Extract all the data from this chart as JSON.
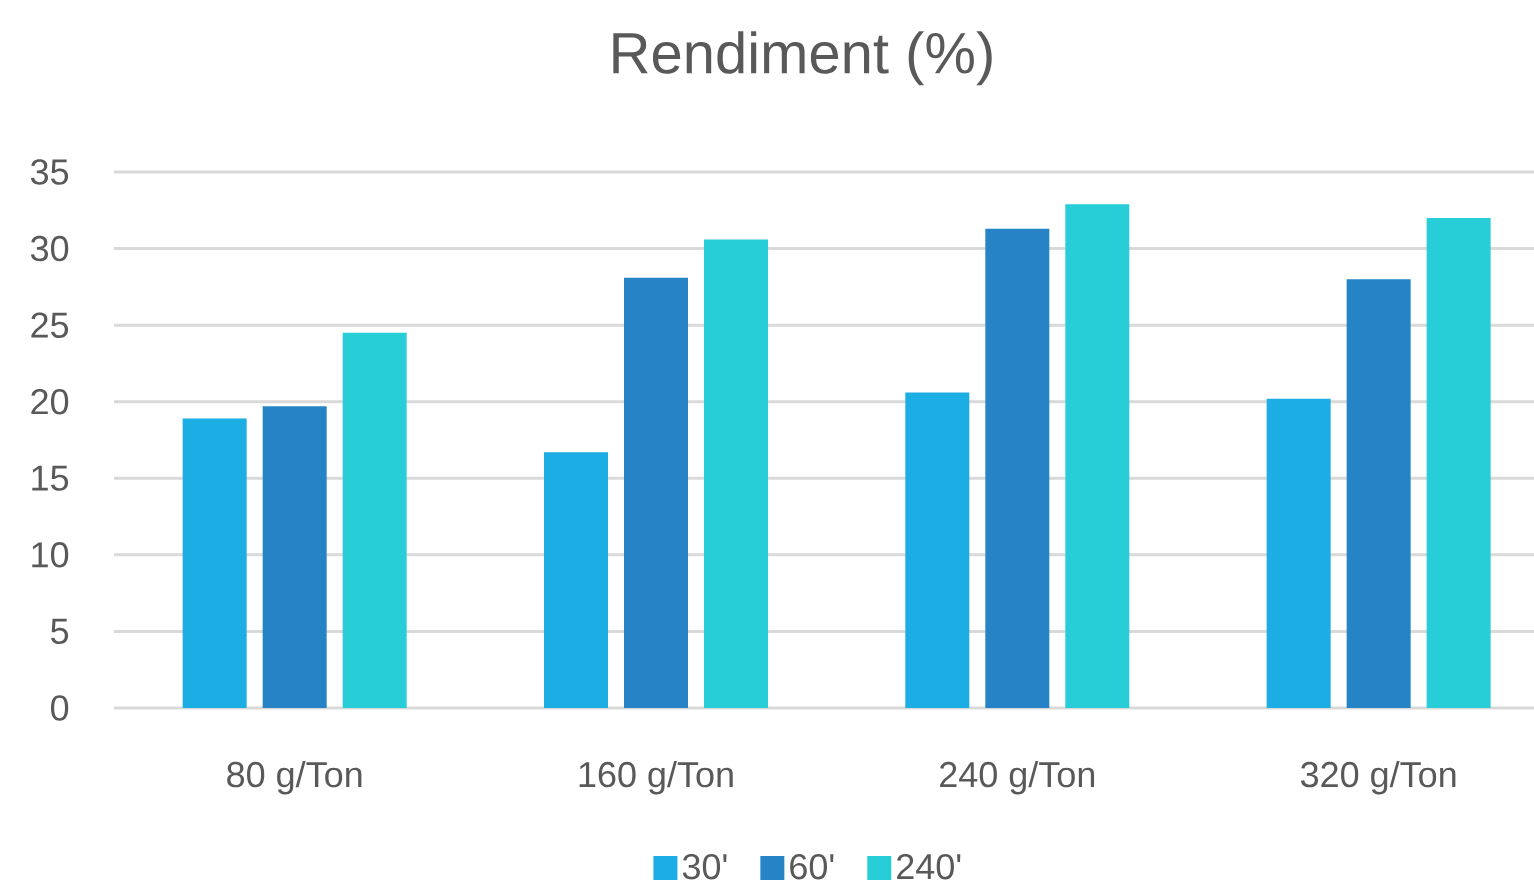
{
  "chart_data": {
    "type": "bar",
    "title": "Rendiment (%)",
    "categories": [
      "80 g/Ton",
      "160 g/Ton",
      "240 g/Ton",
      "320 g/Ton"
    ],
    "series": [
      {
        "name": "30'",
        "color": "#1cade4",
        "values": [
          18.9,
          16.7,
          20.6,
          20.2
        ]
      },
      {
        "name": "60'",
        "color": "#2683c6",
        "values": [
          19.7,
          28.1,
          31.3,
          28.0
        ]
      },
      {
        "name": "240'",
        "color": "#27ced7",
        "values": [
          24.5,
          30.6,
          32.9,
          32.0
        ]
      }
    ],
    "ylim": [
      0,
      35
    ],
    "yticks": [
      0,
      5,
      10,
      15,
      20,
      25,
      30,
      35
    ],
    "grid": "y",
    "legend": "bottom"
  }
}
